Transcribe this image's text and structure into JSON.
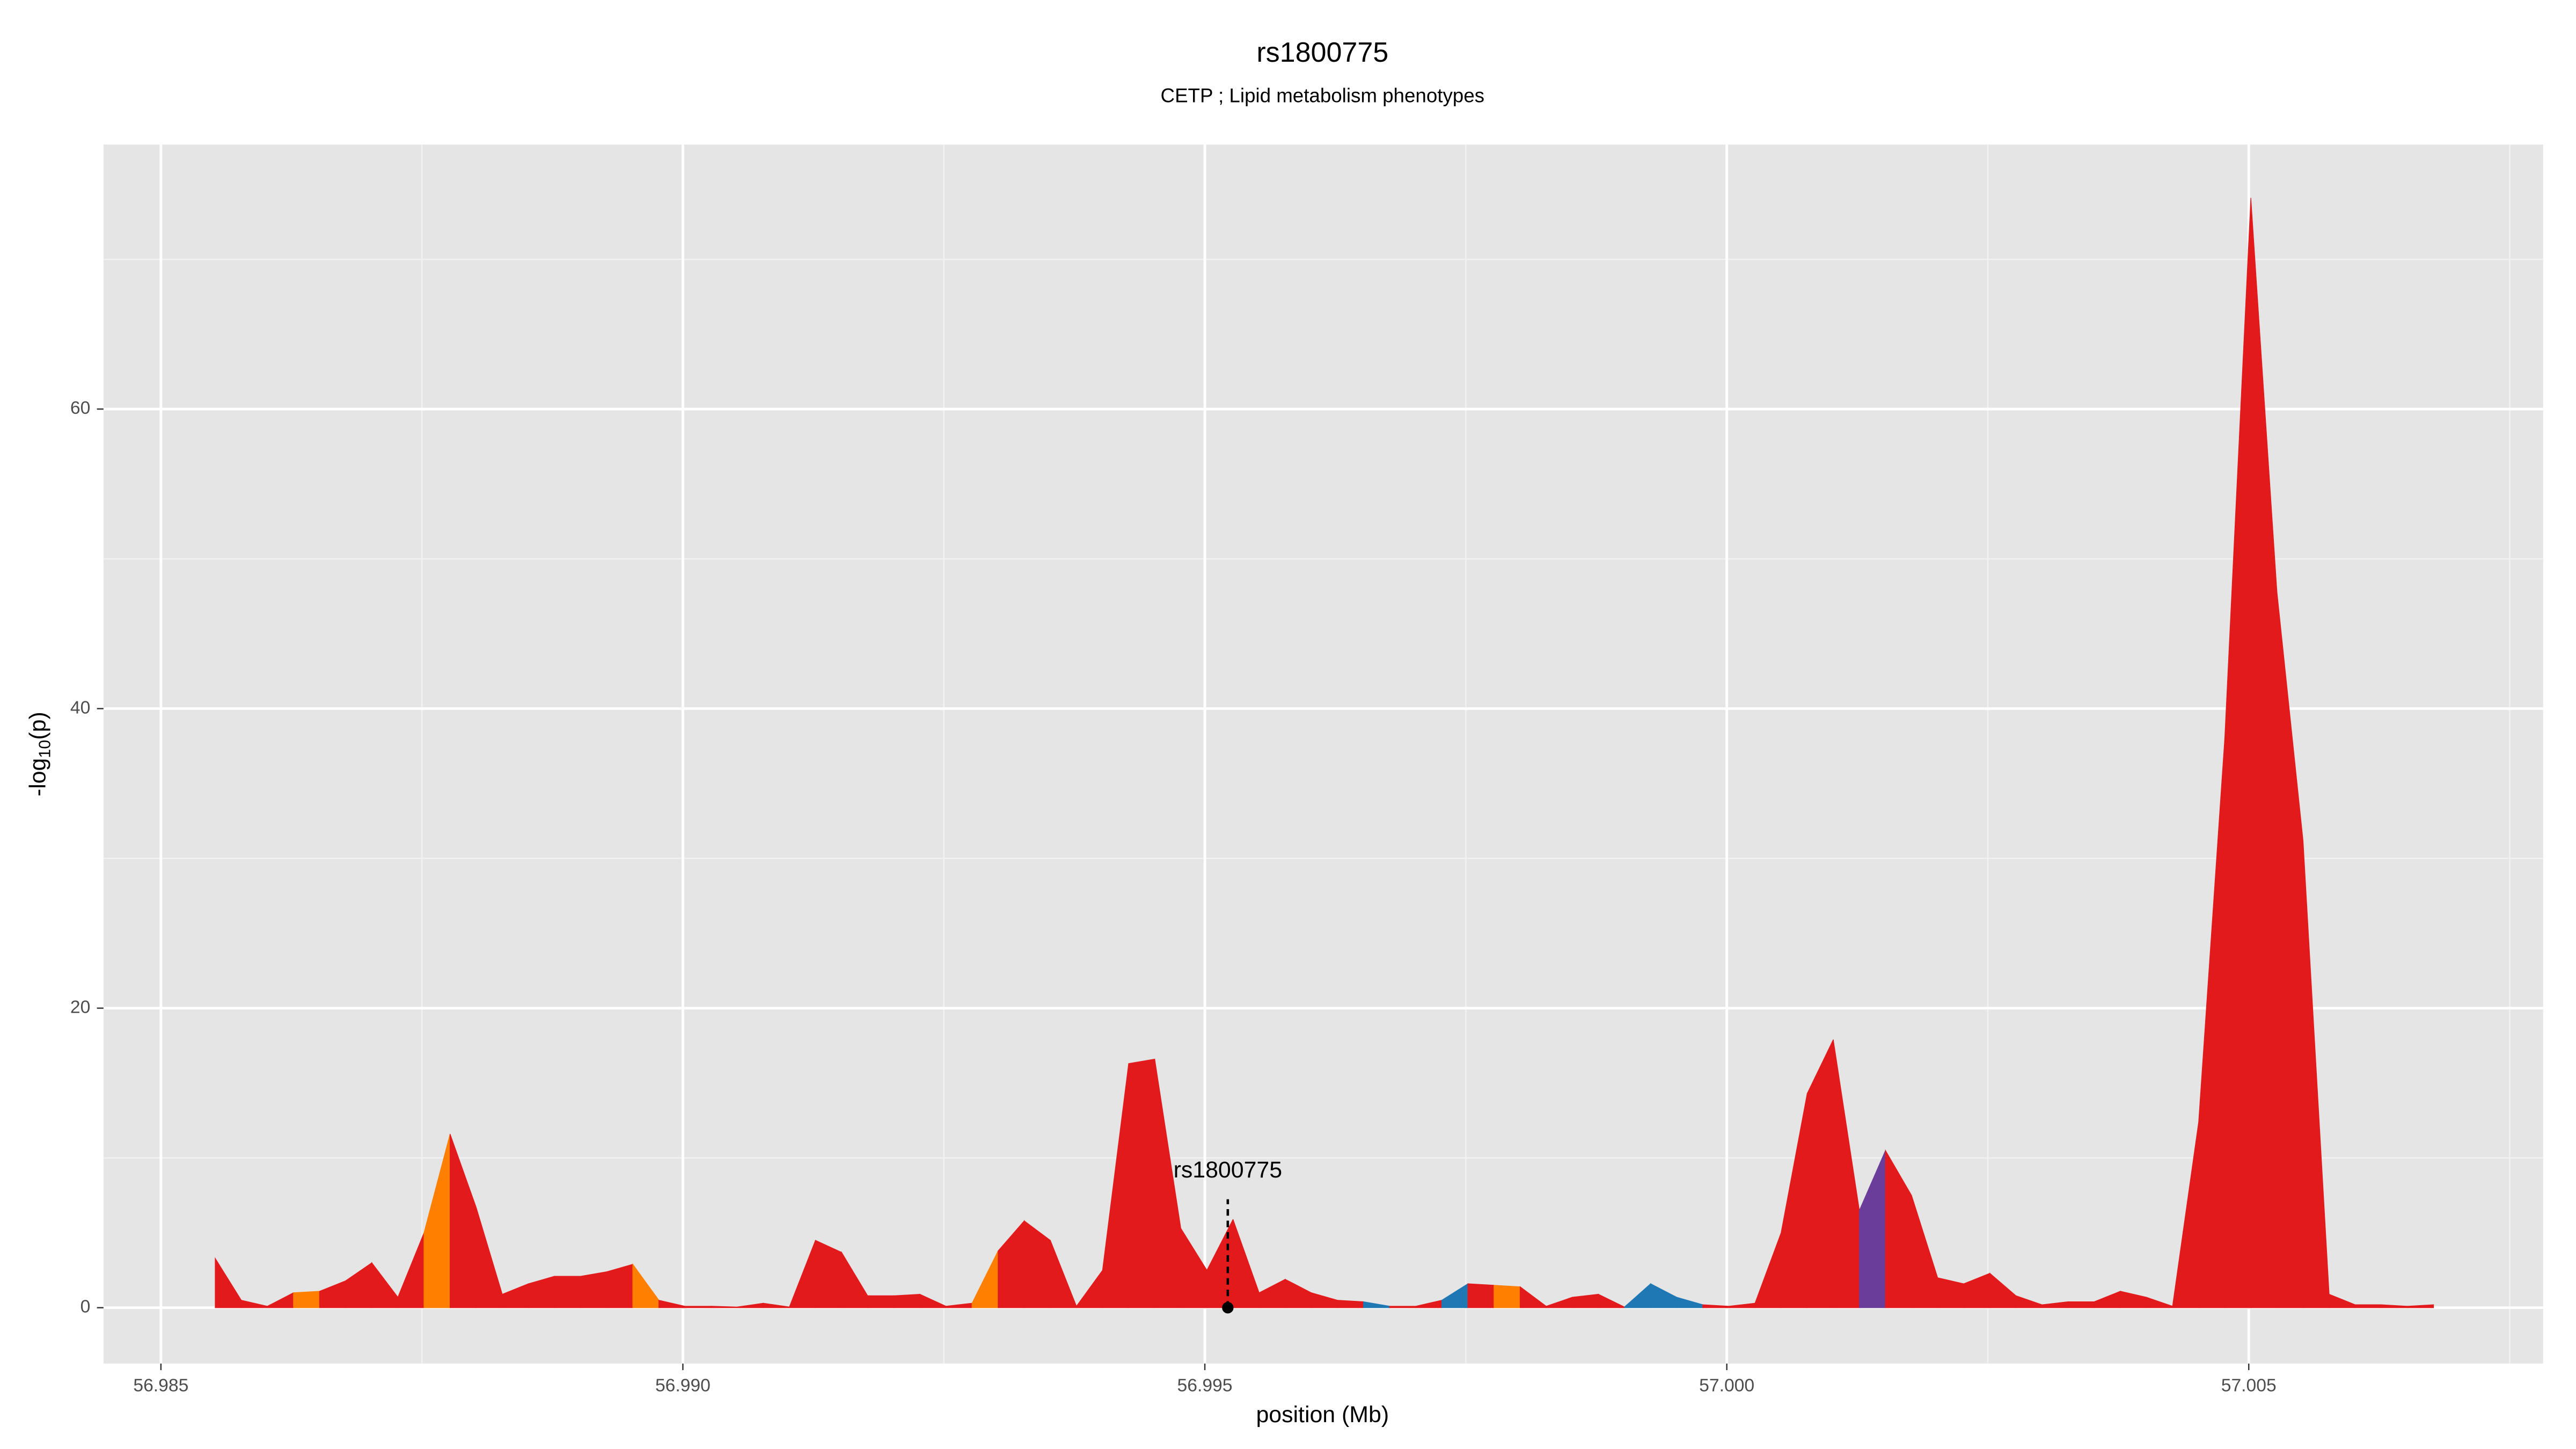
{
  "chart_data": {
    "type": "area",
    "title": "rs1800775",
    "subtitle": "CETP ; Lipid metabolism phenotypes",
    "xlabel": "position (Mb)",
    "ylabel": [
      "-log",
      "10",
      "(p)"
    ],
    "x": [
      56.98552,
      56.98577,
      56.98602,
      56.98627,
      56.98652,
      56.98677,
      56.98702,
      56.98727,
      56.98752,
      56.98777,
      56.98802,
      56.98827,
      56.98852,
      56.98877,
      56.98902,
      56.98927,
      56.98952,
      56.98977,
      56.99002,
      56.99027,
      56.99052,
      56.99077,
      56.99102,
      56.99127,
      56.99152,
      56.99177,
      56.99202,
      56.99227,
      56.99252,
      56.99277,
      56.99302,
      56.99327,
      56.99352,
      56.99377,
      56.99402,
      56.99427,
      56.99452,
      56.99477,
      56.99502,
      56.99527,
      56.99552,
      56.99577,
      56.99602,
      56.99627,
      56.99652,
      56.99677,
      56.99702,
      56.99727,
      56.99752,
      56.99777,
      56.99802,
      56.99827,
      56.99852,
      56.99877,
      56.99902,
      56.99927,
      56.99952,
      56.99977,
      57.00002,
      57.00027,
      57.00052,
      57.00077,
      57.00102,
      57.00127,
      57.00152,
      57.00177,
      57.00202,
      57.00227,
      57.00252,
      57.00277,
      57.00302,
      57.00327,
      57.00352,
      57.00377,
      57.00402,
      57.00427,
      57.00452,
      57.00477,
      57.00502,
      57.00527,
      57.00552,
      57.00577,
      57.00602,
      57.00627,
      57.00652,
      57.00677
    ],
    "values": [
      3.3,
      0.5,
      0.1,
      1.0,
      1.1,
      1.8,
      3.0,
      0.7,
      5.0,
      11.6,
      6.7,
      0.9,
      1.6,
      2.1,
      2.1,
      2.4,
      2.9,
      0.5,
      0.1,
      0.1,
      0.05,
      0.3,
      0.05,
      4.5,
      3.7,
      0.8,
      0.8,
      0.9,
      0.1,
      0.3,
      3.8,
      5.8,
      4.5,
      0.1,
      2.5,
      16.3,
      16.6,
      5.3,
      2.5,
      5.9,
      1.0,
      1.9,
      1.0,
      0.5,
      0.4,
      0.1,
      0.1,
      0.5,
      1.6,
      1.5,
      1.4,
      0.1,
      0.7,
      0.9,
      0.05,
      1.6,
      0.7,
      0.2,
      0.1,
      0.3,
      5.0,
      14.3,
      17.9,
      6.5,
      10.5,
      7.5,
      2.0,
      1.6,
      2.3,
      0.8,
      0.2,
      0.4,
      0.4,
      1.1,
      0.7,
      0.1,
      12.4,
      38,
      74.1,
      47.8,
      31.2,
      0.9,
      0.2,
      0.2,
      0.1,
      0.2
    ],
    "segment_colors": [
      "#e31a1c",
      "#e31a1c",
      "#e31a1c",
      "#ff7f00",
      "#e31a1c",
      "#e31a1c",
      "#e31a1c",
      "#e31a1c",
      "#ff7f00",
      "#e31a1c",
      "#e31a1c",
      "#e31a1c",
      "#e31a1c",
      "#e31a1c",
      "#e31a1c",
      "#e31a1c",
      "#ff7f00",
      "#e31a1c",
      "#e31a1c",
      "#e31a1c",
      "#e31a1c",
      "#e31a1c",
      "#e31a1c",
      "#e31a1c",
      "#e31a1c",
      "#e31a1c",
      "#e31a1c",
      "#e31a1c",
      "#e31a1c",
      "#ff7f00",
      "#e31a1c",
      "#e31a1c",
      "#e31a1c",
      "#e31a1c",
      "#e31a1c",
      "#e31a1c",
      "#e31a1c",
      "#e31a1c",
      "#e31a1c",
      "#e31a1c",
      "#e31a1c",
      "#e31a1c",
      "#e31a1c",
      "#e31a1c",
      "#1f78b4",
      "#e31a1c",
      "#e31a1c",
      "#1f78b4",
      "#e31a1c",
      "#ff7f00",
      "#e31a1c",
      "#e31a1c",
      "#e31a1c",
      "#e31a1c",
      "#1f78b4",
      "#1f78b4",
      "#1f78b4",
      "#e31a1c",
      "#e31a1c",
      "#e31a1c",
      "#e31a1c",
      "#e31a1c",
      "#e31a1c",
      "#6a3d9a",
      "#e31a1c",
      "#e31a1c",
      "#e31a1c",
      "#e31a1c",
      "#e31a1c",
      "#e31a1c",
      "#e31a1c",
      "#e31a1c",
      "#e31a1c",
      "#e31a1c",
      "#e31a1c",
      "#e31a1c",
      "#e31a1c",
      "#e31a1c",
      "#e31a1c",
      "#e31a1c",
      "#e31a1c",
      "#e31a1c",
      "#e31a1c",
      "#e31a1c",
      "#e31a1c"
    ],
    "annotation": {
      "text": "rs1800775",
      "x": 56.99522,
      "y": 0
    },
    "xlim": [
      56.98445,
      57.00782
    ],
    "ylim": [
      -3.73,
      77.66
    ],
    "xticks": [
      56.985,
      {
        "value": 56.99,
        "label": "56.990"
      },
      56.995,
      {
        "value": 57.0,
        "label": "57.000"
      },
      57.005
    ],
    "yticks": [
      0,
      20,
      40,
      60
    ],
    "x_minor_grid": [
      56.9875,
      56.9925,
      56.9975,
      57.0025,
      57.0075
    ],
    "y_minor_grid": [
      10,
      30,
      50,
      70
    ],
    "grid": true
  }
}
